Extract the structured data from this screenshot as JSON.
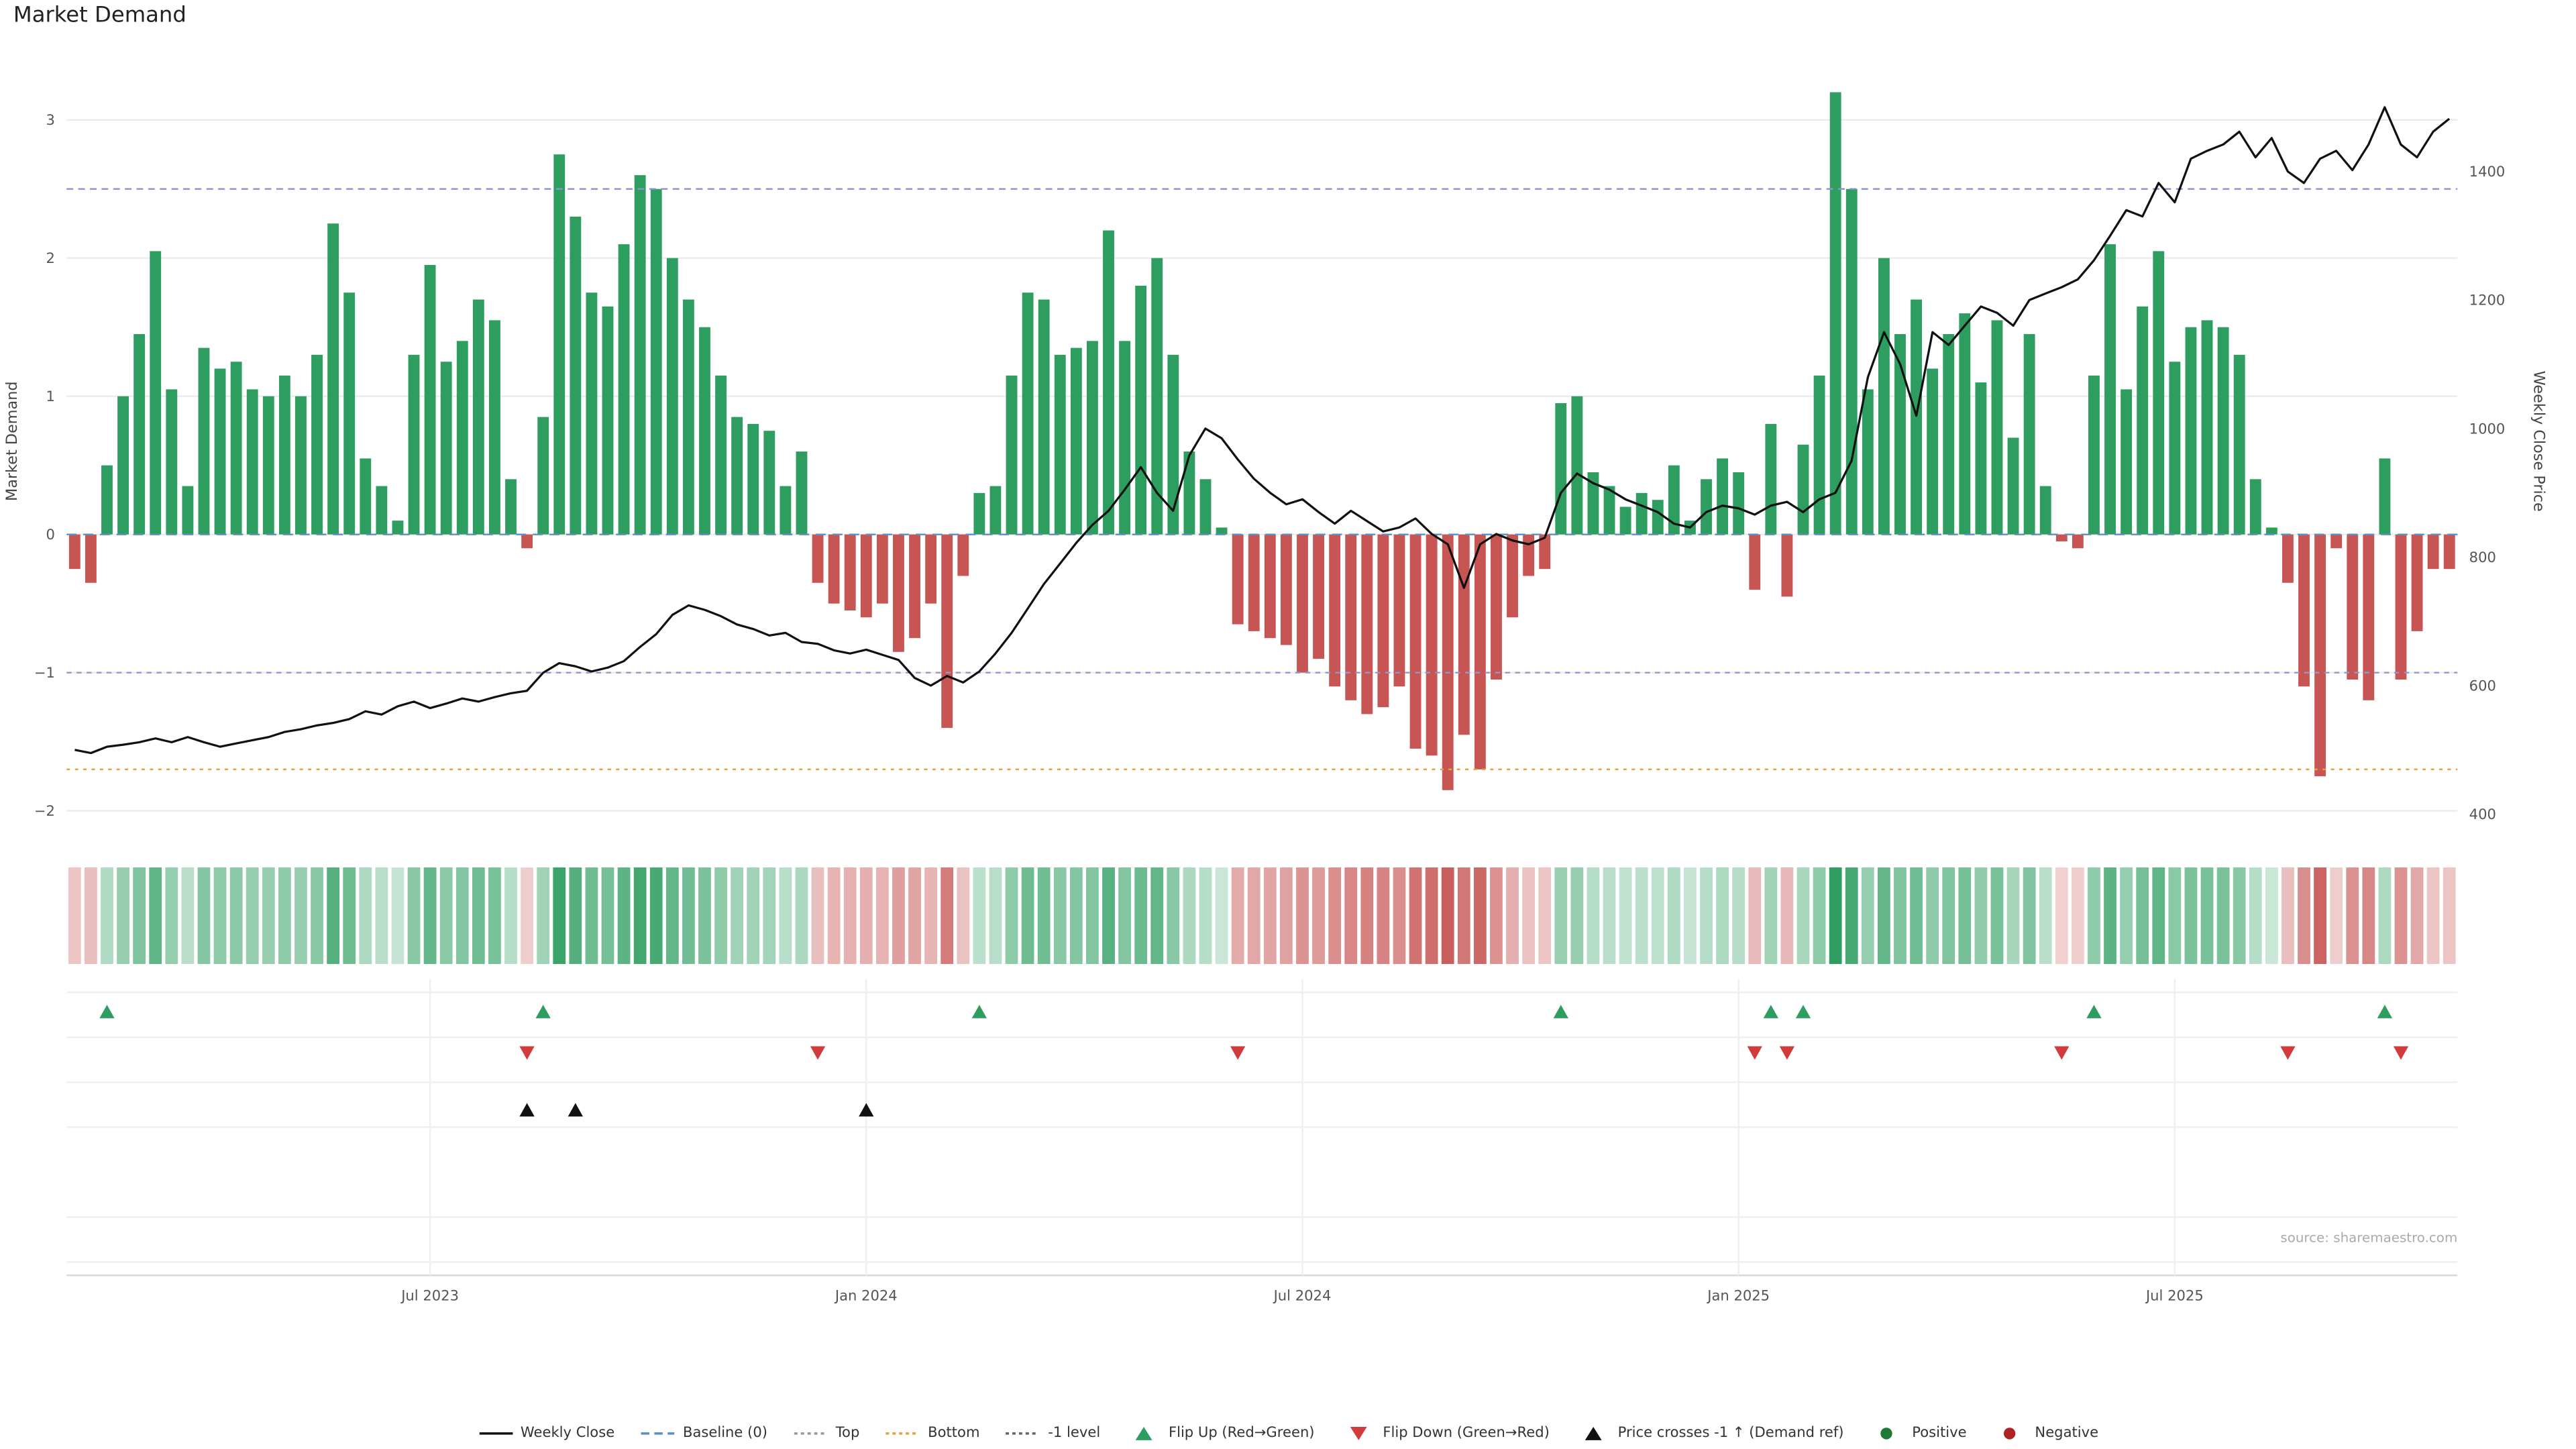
{
  "title": "Market Demand",
  "source_text": "source: sharemaestro.com",
  "axes": {
    "left_title": "Market Demand",
    "right_title": "Weekly Close Price",
    "left_ticks": [
      "3",
      "2",
      "1",
      "0",
      "−1",
      "−2"
    ],
    "left_tick_values": [
      3,
      2,
      1,
      0,
      -1,
      -2
    ],
    "right_ticks": [
      "1400",
      "1200",
      "1000",
      "800",
      "600",
      "400"
    ],
    "right_tick_values": [
      1400,
      1200,
      1000,
      800,
      600,
      400
    ],
    "x_ticks": [
      {
        "week": 22,
        "label": "Jul 2023"
      },
      {
        "week": 49,
        "label": "Jan 2024"
      },
      {
        "week": 76,
        "label": "Jul 2024"
      },
      {
        "week": 103,
        "label": "Jan 2025"
      },
      {
        "week": 130,
        "label": "Jul 2025"
      }
    ]
  },
  "colors": {
    "positive": "#2e9e60",
    "negative": "#c65553",
    "price_line": "#111111",
    "baseline": "#5b8fc9",
    "top_line": "#8a93cc",
    "bottom_line": "#e2a33e",
    "minus1_line": "#9099c9",
    "grid": "#ebebeb",
    "positive_dot": "#1e7a34",
    "negative_dot": "#b22222",
    "flip_up": "#2e9e60",
    "flip_down": "#d23b3b",
    "price_cross": "#111111"
  },
  "chart_data": {
    "type": "bar",
    "title": "Market Demand",
    "xlabel": "",
    "ylabel_left": "Market Demand",
    "ylabel_right": "Weekly Close Price",
    "demand_ylim": [
      -2.2,
      3.4
    ],
    "price_ylim": [
      390,
      1520
    ],
    "weeks": 148,
    "demand": [
      -0.25,
      -0.35,
      0.5,
      1.0,
      1.45,
      2.05,
      1.05,
      0.35,
      1.35,
      1.2,
      1.25,
      1.05,
      1.0,
      1.15,
      1.0,
      1.3,
      2.25,
      1.75,
      0.55,
      0.35,
      0.1,
      1.3,
      1.95,
      1.25,
      1.4,
      1.7,
      1.55,
      0.4,
      -0.1,
      0.85,
      2.75,
      2.3,
      1.75,
      1.65,
      2.1,
      2.6,
      2.5,
      2.0,
      1.7,
      1.5,
      1.15,
      0.85,
      0.8,
      0.75,
      0.35,
      0.6,
      -0.35,
      -0.5,
      -0.55,
      -0.6,
      -0.5,
      -0.85,
      -0.75,
      -0.5,
      -1.4,
      -0.3,
      0.3,
      0.35,
      1.15,
      1.75,
      1.7,
      1.3,
      1.35,
      1.4,
      2.2,
      1.4,
      1.8,
      2.0,
      1.3,
      0.6,
      0.4,
      0.05,
      -0.65,
      -0.7,
      -0.75,
      -0.8,
      -1.0,
      -0.9,
      -1.1,
      -1.2,
      -1.3,
      -1.25,
      -1.1,
      -1.55,
      -1.6,
      -1.85,
      -1.45,
      -1.7,
      -1.05,
      -0.6,
      -0.3,
      -0.25,
      0.95,
      1.0,
      0.45,
      0.35,
      0.2,
      0.3,
      0.25,
      0.5,
      0.1,
      0.4,
      0.55,
      0.45,
      -0.4,
      0.8,
      -0.45,
      0.65,
      1.15,
      3.2,
      2.5,
      1.05,
      2.0,
      1.45,
      1.7,
      1.2,
      1.45,
      1.6,
      1.1,
      1.55,
      0.7,
      1.45,
      0.35,
      -0.05,
      -0.1,
      1.15,
      2.1,
      1.05,
      1.65,
      2.05,
      1.25,
      1.5,
      1.55,
      1.5,
      1.3,
      0.4,
      0.05,
      -0.35,
      -1.1,
      -1.75,
      -0.1,
      -1.05,
      -1.2,
      0.55,
      -1.05,
      -0.7,
      -0.25,
      -0.25
    ],
    "price": [
      500,
      495,
      505,
      508,
      512,
      518,
      512,
      520,
      512,
      505,
      510,
      515,
      520,
      528,
      532,
      538,
      542,
      548,
      560,
      555,
      568,
      575,
      565,
      572,
      580,
      575,
      582,
      588,
      592,
      620,
      635,
      630,
      622,
      628,
      638,
      660,
      680,
      710,
      725,
      718,
      708,
      695,
      688,
      678,
      682,
      668,
      665,
      655,
      650,
      656,
      648,
      640,
      612,
      600,
      615,
      605,
      622,
      650,
      682,
      720,
      758,
      790,
      822,
      850,
      872,
      905,
      940,
      900,
      872,
      958,
      1000,
      985,
      952,
      922,
      900,
      882,
      890,
      870,
      852,
      872,
      856,
      840,
      846,
      860,
      836,
      820,
      752,
      820,
      836,
      826,
      820,
      830,
      900,
      930,
      915,
      905,
      890,
      880,
      870,
      852,
      846,
      870,
      880,
      876,
      866,
      880,
      886,
      870,
      890,
      900,
      950,
      1080,
      1150,
      1100,
      1020,
      1150,
      1130,
      1160,
      1190,
      1180,
      1160,
      1200,
      1210,
      1220,
      1232,
      1262,
      1300,
      1340,
      1330,
      1382,
      1352,
      1420,
      1432,
      1442,
      1462,
      1422,
      1452,
      1400,
      1382,
      1420,
      1432,
      1402,
      1442,
      1500,
      1442,
      1422,
      1462,
      1482
    ],
    "reference_lines": {
      "baseline": 0,
      "top": 2.5,
      "bottom": -1.7,
      "minus1": -1
    },
    "markers": {
      "flip_up_weeks": [
        2,
        29,
        56,
        92,
        105,
        107,
        125,
        143
      ],
      "flip_down_weeks": [
        28,
        46,
        72,
        104,
        106,
        123,
        137,
        144
      ],
      "price_cross_weeks": [
        28,
        31,
        49
      ]
    }
  },
  "legend": {
    "items": [
      {
        "type": "line",
        "color": "#111111",
        "label": "Weekly Close"
      },
      {
        "type": "dash",
        "color": "#5b8fc9",
        "label": "Baseline (0)"
      },
      {
        "type": "dot-line",
        "color": "#999999",
        "label": "Top"
      },
      {
        "type": "dot-line",
        "color": "#e2a33e",
        "label": "Bottom"
      },
      {
        "type": "dot-line",
        "color": "#666666",
        "label": "-1 level"
      },
      {
        "type": "tri-up",
        "color": "#2e9e60",
        "label": "Flip Up (Red→Green)"
      },
      {
        "type": "tri-down",
        "color": "#d23b3b",
        "label": "Flip Down (Green→Red)"
      },
      {
        "type": "tri-up",
        "color": "#111111",
        "label": "Price crosses -1 ↑ (Demand ref)"
      },
      {
        "type": "dot",
        "color": "#1e7a34",
        "label": "Positive"
      },
      {
        "type": "dot",
        "color": "#b22222",
        "label": "Negative"
      }
    ]
  }
}
